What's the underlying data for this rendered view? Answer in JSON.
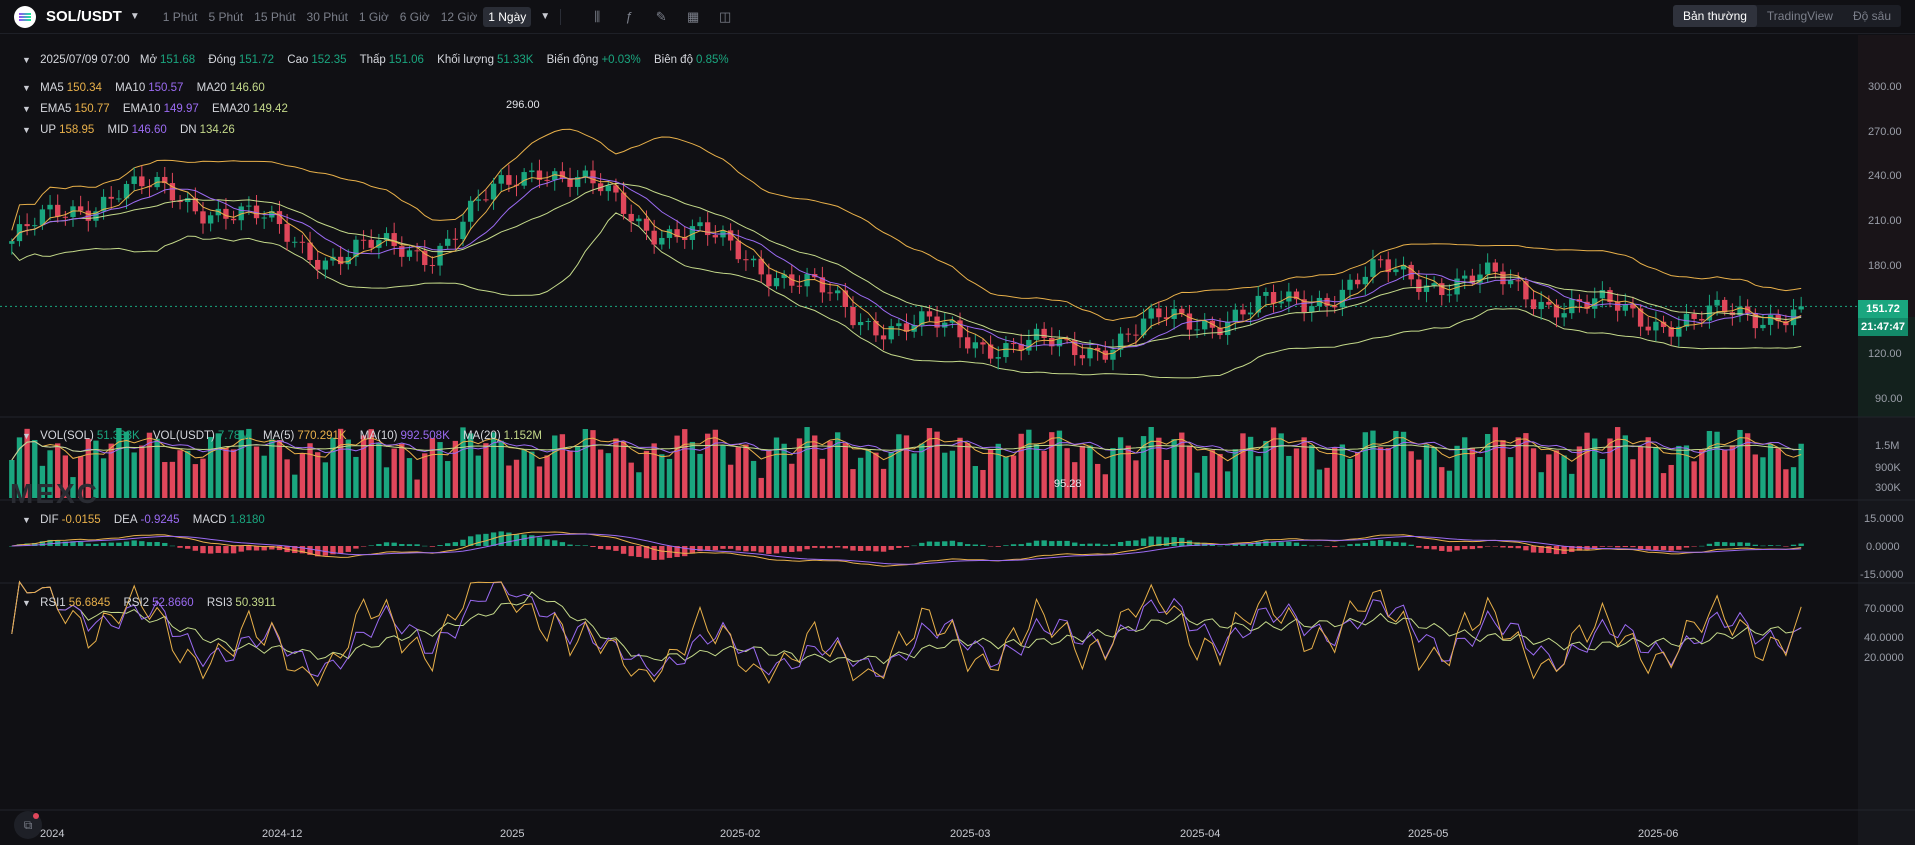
{
  "symbol": {
    "name": "SOL/USDT"
  },
  "intervals": [
    "1 Phút",
    "5 Phút",
    "15 Phút",
    "30 Phút",
    "1 Giờ",
    "6 Giờ",
    "12 Giờ",
    "1 Ngày"
  ],
  "active_interval": "1 Ngày",
  "views": [
    "Bản thường",
    "TradingView",
    "Độ sâu"
  ],
  "active_view": "Bản thường",
  "ohlc": {
    "date": "2025/07/09 07:00",
    "open_label": "Mở",
    "open": "151.68",
    "close_label": "Đóng",
    "close": "151.72",
    "high_label": "Cao",
    "high": "152.35",
    "low_label": "Thấp",
    "low": "151.06",
    "vol_label": "Khối lượng",
    "vol": "51.33K",
    "change_label": "Biến động",
    "change": "+0.03%",
    "amp_label": "Biên độ",
    "amp": "0.85%"
  },
  "ma": {
    "ma5_label": "MA5",
    "ma5": "150.34",
    "ma10_label": "MA10",
    "ma10": "150.57",
    "ma20_label": "MA20",
    "ma20": "146.60"
  },
  "ema": {
    "ema5_label": "EMA5",
    "ema5": "150.77",
    "ema10_label": "EMA10",
    "ema10": "149.97",
    "ema20_label": "EMA20",
    "ema20": "149.42"
  },
  "boll": {
    "up_label": "UP",
    "up": "158.95",
    "mid_label": "MID",
    "mid": "146.60",
    "dn_label": "DN",
    "dn": "134.26"
  },
  "vol": {
    "sol_label": "VOL(SOL)",
    "sol": "51.333K",
    "usdt_label": "VOL(USDT)",
    "usdt": "7.78M",
    "ma5_label": "MA(5)",
    "ma5": "770.291K",
    "ma10_label": "MA(10)",
    "ma10": "992.508K",
    "ma20_label": "MA(20)",
    "ma20": "1.152M"
  },
  "macd": {
    "dif_label": "DIF",
    "dif": "-0.0155",
    "dea_label": "DEA",
    "dea": "-0.9245",
    "macd_label": "MACD",
    "macd": "1.8180"
  },
  "rsi": {
    "rsi1_label": "RSI1",
    "rsi1": "56.6845",
    "rsi2_label": "RSI2",
    "rsi2": "52.8660",
    "rsi3_label": "RSI3",
    "rsi3": "50.3911"
  },
  "price_axis": [
    "300.00",
    "270.00",
    "240.00",
    "210.00",
    "180.00",
    "120.00",
    "90.00"
  ],
  "vol_axis": [
    "1.5M",
    "900K",
    "300K"
  ],
  "macd_axis": [
    "15.0000",
    "0.0000",
    "-15.0000"
  ],
  "rsi_axis": [
    "70.0000",
    "40.0000",
    "20.0000"
  ],
  "time_axis": [
    "2024",
    "2024-12",
    "2025",
    "2025-02",
    "2025-03",
    "2025-04",
    "2025-05",
    "2025-06"
  ],
  "last_price": "151.72",
  "countdown": "21:47:47",
  "high_marker": "296.00",
  "low_marker": "95.28",
  "watermark": "MEXC",
  "colors": {
    "up": "#1aa67f",
    "down": "#e0475b",
    "ma5": "#e8b04a",
    "ma10": "#9b6bf2",
    "ma20": "#c4d98a"
  },
  "chart_data": {
    "type": "candlestick",
    "price_range": [
      75,
      320
    ],
    "series_close_keypoints": [
      {
        "x": "2024-11",
        "close": 200
      },
      {
        "x": "2024-11-20",
        "close": 240
      },
      {
        "x": "2024-12-05",
        "close": 225
      },
      {
        "x": "2024-12-20",
        "close": 190
      },
      {
        "x": "2025-01-01",
        "close": 195
      },
      {
        "x": "2025-01-18",
        "close": 260
      },
      {
        "x": "2025-01-31",
        "close": 215
      },
      {
        "x": "2025-02-15",
        "close": 190
      },
      {
        "x": "2025-02-28",
        "close": 145
      },
      {
        "x": "2025-03-15",
        "close": 130
      },
      {
        "x": "2025-03-31",
        "close": 118
      },
      {
        "x": "2025-04-15",
        "close": 140
      },
      {
        "x": "2025-04-30",
        "close": 150
      },
      {
        "x": "2025-05-12",
        "close": 175
      },
      {
        "x": "2025-05-25",
        "close": 170
      },
      {
        "x": "2025-06-10",
        "close": 150
      },
      {
        "x": "2025-06-22",
        "close": 140
      },
      {
        "x": "2025-07-09",
        "close": 151.72
      }
    ]
  }
}
